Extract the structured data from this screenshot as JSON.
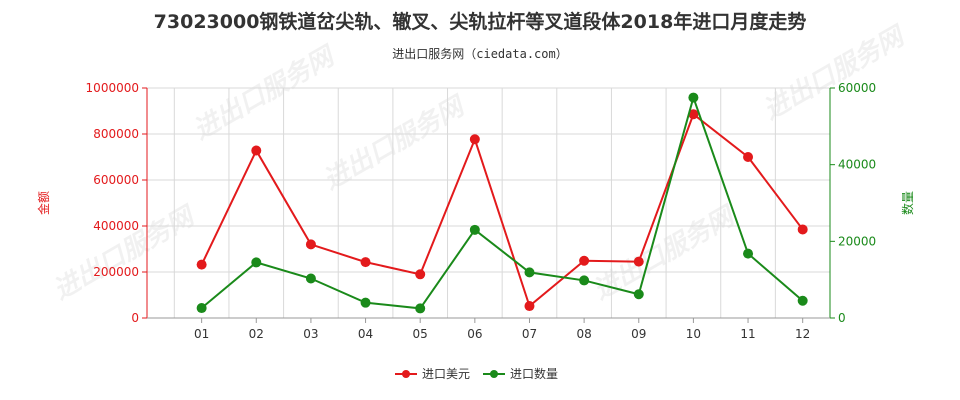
{
  "chart_data": {
    "type": "line",
    "title": "73023000钢铁道岔尖轨、辙叉、尖轨拉杆等叉道段体2018年进口月度走势",
    "subtitle": "进出口服务网（ciedata.com）",
    "categories": [
      "01",
      "02",
      "03",
      "04",
      "05",
      "06",
      "07",
      "08",
      "09",
      "10",
      "11",
      "12"
    ],
    "y_left": {
      "label": "金额",
      "ylim": [
        0,
        1000000
      ],
      "ticks": [
        0,
        200000,
        400000,
        600000,
        800000,
        1000000
      ],
      "tick_labels": [
        "0",
        "200000",
        "400000",
        "600000",
        "800000",
        "1000000"
      ]
    },
    "y_right": {
      "label": "数量",
      "ylim": [
        0,
        60000
      ],
      "ticks": [
        0,
        20000,
        40000,
        60000
      ],
      "tick_labels": [
        "0",
        "20000",
        "40000",
        "60000"
      ]
    },
    "series": [
      {
        "name": "进口美元",
        "axis": "left",
        "color": "#e31a1c",
        "values": [
          232000,
          728000,
          320000,
          243000,
          190000,
          777000,
          52000,
          249000,
          245000,
          886000,
          700000,
          385000
        ]
      },
      {
        "name": "进口数量",
        "axis": "right",
        "color": "#1a8a1a",
        "values": [
          2600,
          14500,
          10300,
          4000,
          2500,
          23000,
          11900,
          9800,
          6200,
          57500,
          16800,
          4500
        ]
      }
    ],
    "grid": true,
    "legend_position": "bottom"
  },
  "watermark": "进出口服务网"
}
